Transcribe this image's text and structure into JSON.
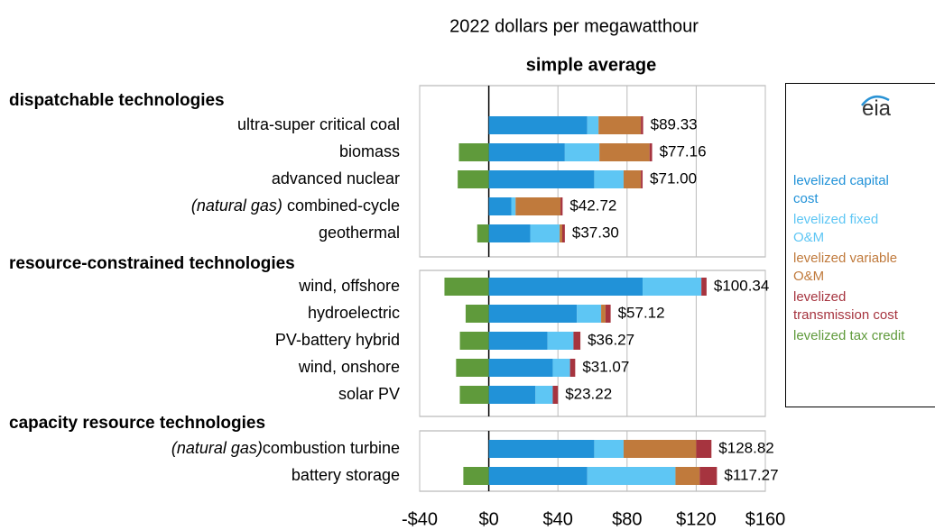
{
  "chart_data": {
    "type": "stacked-bar-horizontal",
    "title": "2022 dollars per megawatthour",
    "subtitle": "simple average",
    "logo": "eia",
    "groups": [
      {
        "name": "dispatchable technologies",
        "categories": [
          "ultra-super critical coal",
          "biomass",
          "advanced nuclear",
          "(natural gas) combined-cycle",
          "geothermal"
        ]
      },
      {
        "name": "resource-constrained technologies",
        "categories": [
          "wind, offshore",
          "hydroelectric",
          "PV-battery hybrid",
          "wind, onshore",
          "solar PV"
        ]
      },
      {
        "name": "capacity resource technologies",
        "categories": [
          "(natural gas)combustion turbine",
          "battery storage"
        ]
      }
    ],
    "series": [
      {
        "name": "levelized capital cost",
        "color": "#2192d8",
        "values": [
          57,
          44,
          61,
          13,
          24,
          89,
          51,
          34,
          37,
          27,
          61,
          57
        ]
      },
      {
        "name": "levelized fixed O&M",
        "color": "#5ec6f4",
        "values": [
          6.5,
          20,
          17,
          2.5,
          17,
          34,
          14,
          15,
          10,
          10,
          17,
          51
        ]
      },
      {
        "name": "levelized variable O&M",
        "color": "#c07a3c",
        "values": [
          24.5,
          29,
          10,
          26,
          1.5,
          0,
          2.5,
          0,
          0,
          0,
          42,
          14
        ]
      },
      {
        "name": "levelized transmission cost",
        "color": "#a6343f",
        "values": [
          1.3,
          1.5,
          1,
          1.2,
          1.5,
          3,
          3,
          4,
          3,
          3,
          8.82,
          10
        ]
      },
      {
        "name": "levelized tax credit",
        "color": "#5f9a3b",
        "values": [
          0,
          -17.3,
          -18,
          0,
          -6.7,
          -25.66,
          -13.4,
          -16.73,
          -18.93,
          -16.78,
          0,
          -14.73
        ]
      }
    ],
    "totals": {
      "values": [
        89.33,
        77.16,
        71.0,
        42.72,
        37.3,
        100.34,
        57.12,
        36.27,
        31.07,
        23.22,
        128.82,
        117.27
      ],
      "value_labels": [
        "$89.33",
        "$77.16",
        "$71.00",
        "$42.72",
        "$37.30",
        "$100.34",
        "$57.12",
        "$36.27",
        "$31.07",
        "$23.22",
        "$128.82",
        "$117.27"
      ]
    },
    "xlim": [
      -40,
      160
    ],
    "xticks": [
      {
        "value": -40,
        "label": "-$40"
      },
      {
        "value": 0,
        "label": "$0"
      },
      {
        "value": 40,
        "label": "$40"
      },
      {
        "value": 80,
        "label": "$80"
      },
      {
        "value": 120,
        "label": "$120"
      },
      {
        "value": 160,
        "label": "$160"
      }
    ],
    "grid": true
  }
}
